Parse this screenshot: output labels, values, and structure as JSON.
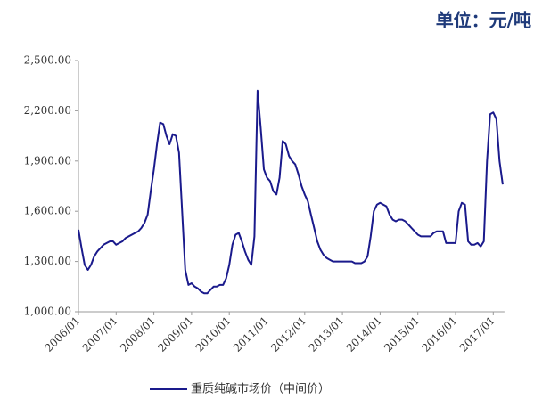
{
  "chart_data": {
    "type": "line",
    "annotation": "单位：元/吨",
    "categories": [
      "2006/01",
      null,
      null,
      null,
      null,
      null,
      null,
      null,
      null,
      null,
      null,
      null,
      "2007/01",
      null,
      null,
      null,
      null,
      null,
      null,
      null,
      null,
      null,
      null,
      null,
      "2008/01",
      null,
      null,
      null,
      null,
      null,
      null,
      null,
      null,
      null,
      null,
      null,
      "2009/01",
      null,
      null,
      null,
      null,
      null,
      null,
      null,
      null,
      null,
      null,
      null,
      "2010/01",
      null,
      null,
      null,
      null,
      null,
      null,
      null,
      null,
      null,
      null,
      null,
      "2011/01",
      null,
      null,
      null,
      null,
      null,
      null,
      null,
      null,
      null,
      null,
      null,
      "2012/01",
      null,
      null,
      null,
      null,
      null,
      null,
      null,
      null,
      null,
      null,
      null,
      "2013/01",
      null,
      null,
      null,
      null,
      null,
      null,
      null,
      null,
      null,
      null,
      null,
      "2014/01",
      null,
      null,
      null,
      null,
      null,
      null,
      null,
      null,
      null,
      null,
      null,
      "2015/01",
      null,
      null,
      null,
      null,
      null,
      null,
      null,
      null,
      null,
      null,
      null,
      "2016/01",
      null,
      null,
      null,
      null,
      null,
      null,
      null,
      null,
      null,
      null,
      null,
      "2017/01",
      null,
      null,
      null
    ],
    "series": [
      {
        "name": "重质纯碱市场价（中间价）",
        "color": "#1a1a8c",
        "values": [
          1490,
          1380,
          1280,
          1250,
          1280,
          1330,
          1360,
          1380,
          1400,
          1410,
          1420,
          1420,
          1400,
          1410,
          1420,
          1440,
          1450,
          1460,
          1470,
          1480,
          1500,
          1530,
          1580,
          1720,
          1850,
          2000,
          2130,
          2120,
          2050,
          2000,
          2060,
          2050,
          1950,
          1600,
          1250,
          1160,
          1170,
          1150,
          1140,
          1120,
          1110,
          1110,
          1130,
          1150,
          1150,
          1160,
          1160,
          1200,
          1280,
          1400,
          1460,
          1470,
          1420,
          1360,
          1310,
          1280,
          1450,
          2320,
          2100,
          1850,
          1800,
          1780,
          1720,
          1700,
          1800,
          2020,
          2000,
          1930,
          1900,
          1880,
          1820,
          1750,
          1700,
          1660,
          1580,
          1500,
          1420,
          1370,
          1340,
          1320,
          1310,
          1300,
          1300,
          1300,
          1300,
          1300,
          1300,
          1300,
          1290,
          1290,
          1290,
          1300,
          1330,
          1450,
          1600,
          1640,
          1650,
          1640,
          1630,
          1580,
          1550,
          1540,
          1550,
          1550,
          1540,
          1520,
          1500,
          1480,
          1460,
          1450,
          1450,
          1450,
          1450,
          1470,
          1480,
          1480,
          1480,
          1410,
          1410,
          1410,
          1410,
          1600,
          1650,
          1640,
          1420,
          1400,
          1400,
          1410,
          1390,
          1420,
          1900,
          2180,
          2190,
          2150,
          1900,
          1760
        ]
      }
    ],
    "ylim": [
      1000,
      2500
    ],
    "yticks": [
      {
        "value": 1000,
        "label": "1,000.00"
      },
      {
        "value": 1300,
        "label": "1,300.00"
      },
      {
        "value": 1600,
        "label": "1,600.00"
      },
      {
        "value": 1900,
        "label": "1,900.00"
      },
      {
        "value": 2200,
        "label": "2,200.00"
      },
      {
        "value": 2500,
        "label": "2,500.00"
      }
    ],
    "legend": "bottom"
  }
}
